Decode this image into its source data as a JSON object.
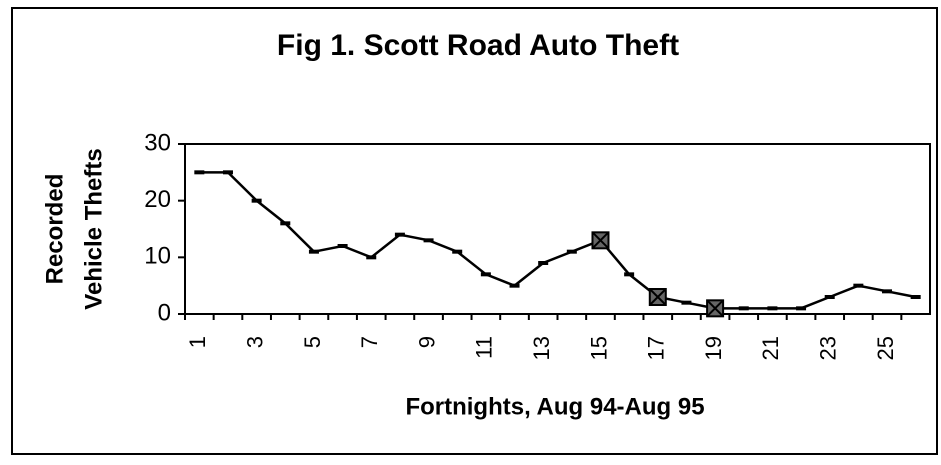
{
  "chart_data": {
    "type": "line",
    "title": "Fig 1. Scott Road Auto Theft",
    "xlabel": "Fortnights, Aug 94-Aug 95",
    "ylabel": [
      "Recorded",
      "Vehicle Thefts"
    ],
    "categories": [
      "1",
      null,
      "3",
      null,
      "5",
      null,
      "7",
      null,
      "9",
      null,
      "11",
      null,
      "13",
      null,
      "15",
      null,
      "17",
      null,
      "19",
      null,
      "21",
      null,
      "23",
      null,
      "25",
      null
    ],
    "series": [
      {
        "name": "Recorded Vehicle Thefts",
        "color": "#000000",
        "values": [
          25,
          25,
          20,
          16,
          11,
          12,
          10,
          14,
          13,
          11,
          7,
          5,
          9,
          11,
          13,
          7,
          3,
          2,
          1,
          1,
          1,
          1,
          3,
          5,
          4,
          3
        ]
      }
    ],
    "emphasized_points": [
      14,
      16,
      18
    ],
    "ylim": [
      0,
      30
    ],
    "yticks": [
      0,
      10,
      20,
      30
    ],
    "grid": false
  }
}
